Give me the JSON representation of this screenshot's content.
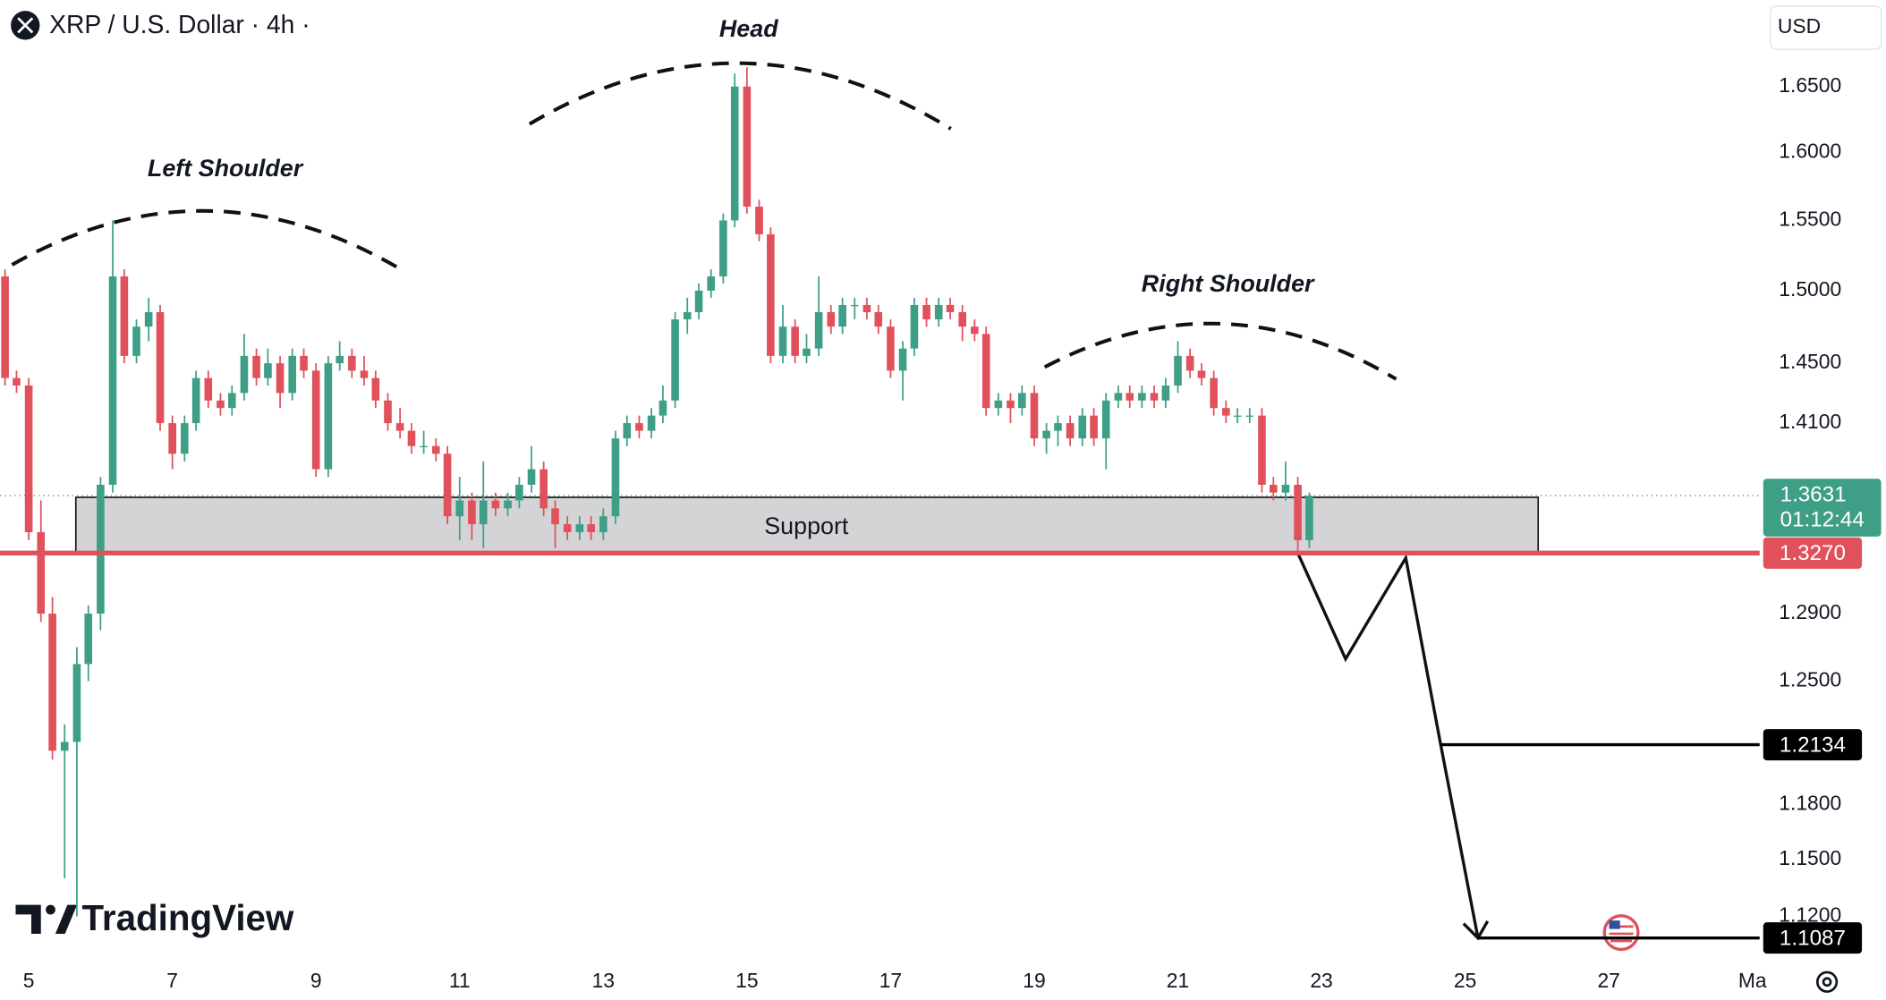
{
  "chart_data": {
    "type": "candlestick",
    "title": "XRP / U.S. Dollar · 4h ·",
    "currency": "USD",
    "log_scale": true,
    "up_color": "#3e9f86",
    "down_color": "#e0515b",
    "x": [
      4.67,
      4.83,
      5,
      5.17,
      5.33,
      5.5,
      5.67,
      5.83,
      6,
      6.17,
      6.33,
      6.5,
      6.67,
      6.83,
      7,
      7.17,
      7.33,
      7.5,
      7.67,
      7.83,
      8,
      8.17,
      8.33,
      8.5,
      8.67,
      8.83,
      9,
      9.17,
      9.33,
      9.5,
      9.67,
      9.83,
      10,
      10.17,
      10.33,
      10.5,
      10.67,
      10.83,
      11,
      11.17,
      11.33,
      11.5,
      11.67,
      11.83,
      12,
      12.17,
      12.33,
      12.5,
      12.67,
      12.83,
      13,
      13.17,
      13.33,
      13.5,
      13.67,
      13.83,
      14,
      14.17,
      14.33,
      14.5,
      14.67,
      14.83,
      15,
      15.17,
      15.33,
      15.5,
      15.67,
      15.83,
      16,
      16.17,
      16.33,
      16.5,
      16.67,
      16.83,
      17,
      17.17,
      17.33,
      17.5,
      17.67,
      17.83,
      18,
      18.17,
      18.33,
      18.5,
      18.67,
      18.83,
      19,
      19.17,
      19.33,
      19.5,
      19.67,
      19.83,
      20,
      20.17,
      20.33,
      20.5,
      20.67,
      20.83,
      21,
      21.17,
      21.33,
      21.5,
      21.67,
      21.83,
      22,
      22.17,
      22.33,
      22.5,
      22.67,
      22.83
    ],
    "open": [
      1.51,
      1.44,
      1.435,
      1.34,
      1.29,
      1.21,
      1.215,
      1.26,
      1.29,
      1.37,
      1.51,
      1.455,
      1.475,
      1.485,
      1.41,
      1.39,
      1.41,
      1.44,
      1.425,
      1.42,
      1.43,
      1.455,
      1.44,
      1.45,
      1.43,
      1.455,
      1.445,
      1.38,
      1.45,
      1.455,
      1.445,
      1.44,
      1.425,
      1.41,
      1.405,
      1.395,
      1.395,
      1.39,
      1.35,
      1.36,
      1.345,
      1.36,
      1.355,
      1.36,
      1.37,
      1.38,
      1.355,
      1.345,
      1.34,
      1.345,
      1.34,
      1.35,
      1.4,
      1.41,
      1.405,
      1.415,
      1.425,
      1.48,
      1.485,
      1.5,
      1.51,
      1.55,
      1.65,
      1.56,
      1.54,
      1.455,
      1.475,
      1.455,
      1.46,
      1.485,
      1.475,
      1.49,
      1.49,
      1.485,
      1.475,
      1.445,
      1.46,
      1.49,
      1.48,
      1.49,
      1.485,
      1.475,
      1.47,
      1.42,
      1.425,
      1.42,
      1.43,
      1.4,
      1.405,
      1.41,
      1.4,
      1.415,
      1.4,
      1.425,
      1.43,
      1.425,
      1.43,
      1.425,
      1.435,
      1.455,
      1.445,
      1.44,
      1.42,
      1.415,
      1.415,
      1.415,
      1.37,
      1.365,
      1.37,
      1.335
    ],
    "high": [
      1.515,
      1.445,
      1.44,
      1.36,
      1.3,
      1.225,
      1.27,
      1.295,
      1.375,
      1.55,
      1.515,
      1.48,
      1.495,
      1.49,
      1.415,
      1.415,
      1.445,
      1.445,
      1.43,
      1.435,
      1.47,
      1.46,
      1.46,
      1.455,
      1.46,
      1.46,
      1.45,
      1.455,
      1.465,
      1.46,
      1.455,
      1.445,
      1.43,
      1.42,
      1.41,
      1.405,
      1.4,
      1.395,
      1.375,
      1.365,
      1.385,
      1.365,
      1.365,
      1.375,
      1.395,
      1.385,
      1.36,
      1.35,
      1.35,
      1.35,
      1.355,
      1.405,
      1.415,
      1.415,
      1.42,
      1.435,
      1.485,
      1.495,
      1.505,
      1.515,
      1.555,
      1.66,
      1.665,
      1.565,
      1.545,
      1.49,
      1.48,
      1.47,
      1.51,
      1.49,
      1.495,
      1.495,
      1.495,
      1.49,
      1.48,
      1.465,
      1.495,
      1.495,
      1.495,
      1.495,
      1.49,
      1.48,
      1.475,
      1.43,
      1.43,
      1.435,
      1.435,
      1.41,
      1.415,
      1.415,
      1.42,
      1.42,
      1.43,
      1.435,
      1.435,
      1.435,
      1.435,
      1.44,
      1.465,
      1.46,
      1.45,
      1.445,
      1.425,
      1.42,
      1.42,
      1.42,
      1.375,
      1.385,
      1.375,
      1.365
    ],
    "low": [
      1.435,
      1.43,
      1.335,
      1.285,
      1.205,
      1.14,
      1.12,
      1.25,
      1.28,
      1.365,
      1.45,
      1.45,
      1.465,
      1.405,
      1.38,
      1.385,
      1.405,
      1.42,
      1.415,
      1.415,
      1.425,
      1.435,
      1.435,
      1.42,
      1.425,
      1.44,
      1.375,
      1.375,
      1.445,
      1.44,
      1.435,
      1.42,
      1.405,
      1.4,
      1.39,
      1.39,
      1.385,
      1.345,
      1.335,
      1.335,
      1.33,
      1.35,
      1.35,
      1.355,
      1.365,
      1.35,
      1.33,
      1.335,
      1.335,
      1.335,
      1.335,
      1.345,
      1.395,
      1.4,
      1.4,
      1.41,
      1.42,
      1.47,
      1.48,
      1.495,
      1.505,
      1.545,
      1.555,
      1.535,
      1.45,
      1.45,
      1.45,
      1.45,
      1.455,
      1.47,
      1.47,
      1.48,
      1.48,
      1.47,
      1.44,
      1.425,
      1.455,
      1.475,
      1.475,
      1.48,
      1.465,
      1.465,
      1.415,
      1.415,
      1.41,
      1.415,
      1.395,
      1.39,
      1.395,
      1.395,
      1.395,
      1.395,
      1.38,
      1.42,
      1.42,
      1.42,
      1.42,
      1.42,
      1.43,
      1.44,
      1.435,
      1.415,
      1.41,
      1.41,
      1.41,
      1.365,
      1.36,
      1.36,
      1.325,
      1.33
    ],
    "close": [
      1.44,
      1.435,
      1.34,
      1.29,
      1.21,
      1.215,
      1.26,
      1.29,
      1.37,
      1.51,
      1.455,
      1.475,
      1.485,
      1.41,
      1.39,
      1.41,
      1.44,
      1.425,
      1.42,
      1.43,
      1.455,
      1.44,
      1.45,
      1.43,
      1.455,
      1.445,
      1.38,
      1.45,
      1.455,
      1.445,
      1.44,
      1.425,
      1.41,
      1.405,
      1.395,
      1.395,
      1.39,
      1.35,
      1.36,
      1.345,
      1.36,
      1.355,
      1.36,
      1.37,
      1.38,
      1.355,
      1.345,
      1.34,
      1.345,
      1.34,
      1.35,
      1.4,
      1.41,
      1.405,
      1.415,
      1.425,
      1.48,
      1.485,
      1.5,
      1.51,
      1.55,
      1.65,
      1.56,
      1.54,
      1.455,
      1.475,
      1.455,
      1.46,
      1.485,
      1.475,
      1.49,
      1.49,
      1.485,
      1.475,
      1.445,
      1.46,
      1.49,
      1.48,
      1.49,
      1.485,
      1.475,
      1.47,
      1.42,
      1.425,
      1.42,
      1.43,
      1.4,
      1.405,
      1.41,
      1.4,
      1.415,
      1.4,
      1.425,
      1.43,
      1.425,
      1.43,
      1.425,
      1.435,
      1.455,
      1.445,
      1.44,
      1.42,
      1.415,
      1.415,
      1.415,
      1.37,
      1.365,
      1.37,
      1.335,
      1.363
    ],
    "xlim": [
      4.6,
      29.1
    ],
    "xticks": [
      5,
      7,
      9,
      11,
      13,
      15,
      17,
      19,
      21,
      23,
      25,
      27,
      {
        "value": 29,
        "label": "Ma"
      }
    ],
    "ylim": [
      1.096,
      1.718
    ],
    "yticks": [
      {
        "value": 1.65,
        "label": "1.6500"
      },
      {
        "value": 1.6,
        "label": "1.6000"
      },
      {
        "value": 1.55,
        "label": "1.5500"
      },
      {
        "value": 1.5,
        "label": "1.5000"
      },
      {
        "value": 1.45,
        "label": "1.4500"
      },
      {
        "value": 1.41,
        "label": "1.4100"
      },
      {
        "value": 1.29,
        "label": "1.2900"
      },
      {
        "value": 1.25,
        "label": "1.2500"
      },
      {
        "value": 1.18,
        "label": "1.1800"
      },
      {
        "value": 1.15,
        "label": "1.1500"
      },
      {
        "value": 1.12,
        "label": "1.1200"
      }
    ],
    "last_price": {
      "value": 1.3631,
      "label": "1.3631",
      "countdown": "01:12:44",
      "color": "#3e9f86"
    },
    "levels": [
      {
        "value": 1.327,
        "label": "1.3270",
        "color": "#e0515b"
      },
      {
        "value": 1.2134,
        "label": "1.2134",
        "color": "#000000"
      },
      {
        "value": 1.1087,
        "label": "1.1087",
        "color": "#000000"
      }
    ],
    "support": {
      "label": "Support",
      "top": 1.362,
      "bottom": 1.327
    },
    "projection": [
      1.3275,
      1.263,
      1.324,
      1.2134,
      1.1087
    ],
    "annotations": [
      "Left Shoulder",
      "Head",
      "Right Shoulder"
    ],
    "watermark": "TradingView"
  }
}
